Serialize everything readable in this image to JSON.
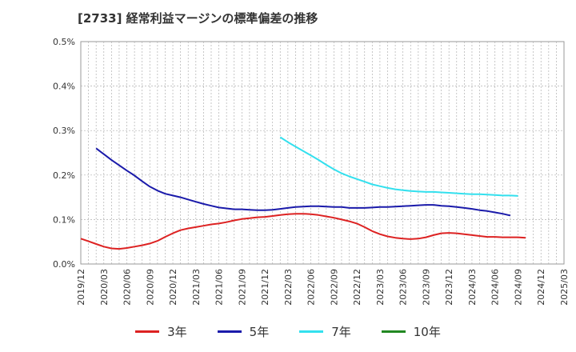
{
  "chart_data": {
    "type": "line",
    "title": "[2733]  経常利益マージンの標準偏差の推移",
    "xlabel": "",
    "ylabel": "",
    "ylim": [
      0,
      0.5
    ],
    "y_ticks": [
      "0.0%",
      "0.1%",
      "0.2%",
      "0.3%",
      "0.4%",
      "0.5%"
    ],
    "x_ticks": [
      "2019/12",
      "2020/03",
      "2020/06",
      "2020/09",
      "2020/12",
      "2021/03",
      "2021/06",
      "2021/09",
      "2021/12",
      "2022/03",
      "2022/06",
      "2022/09",
      "2022/12",
      "2023/03",
      "2023/06",
      "2023/09",
      "2023/12",
      "2024/03",
      "2024/06",
      "2024/09",
      "2024/12",
      "2025/03"
    ],
    "x_start": "2019/12",
    "grid": true,
    "legend": "bottom",
    "series": [
      {
        "name": "3年",
        "color": "#dd2222",
        "start": "2019/12",
        "values": [
          0.057,
          0.051,
          0.045,
          0.039,
          0.035,
          0.034,
          0.036,
          0.039,
          0.042,
          0.046,
          0.052,
          0.061,
          0.069,
          0.076,
          0.08,
          0.083,
          0.086,
          0.089,
          0.091,
          0.094,
          0.098,
          0.101,
          0.103,
          0.105,
          0.106,
          0.108,
          0.11,
          0.112,
          0.113,
          0.113,
          0.112,
          0.11,
          0.107,
          0.104,
          0.1,
          0.096,
          0.091,
          0.083,
          0.074,
          0.067,
          0.062,
          0.059,
          0.057,
          0.056,
          0.057,
          0.06,
          0.065,
          0.069,
          0.07,
          0.069,
          0.067,
          0.065,
          0.063,
          0.061,
          0.061,
          0.06,
          0.06,
          0.06,
          0.059
        ]
      },
      {
        "name": "5年",
        "color": "#1a1aaa",
        "start": "2020/02",
        "values": [
          0.26,
          0.247,
          0.234,
          0.222,
          0.21,
          0.199,
          0.186,
          0.174,
          0.165,
          0.158,
          0.154,
          0.15,
          0.145,
          0.14,
          0.135,
          0.131,
          0.127,
          0.125,
          0.123,
          0.123,
          0.122,
          0.121,
          0.121,
          0.122,
          0.124,
          0.126,
          0.128,
          0.129,
          0.13,
          0.13,
          0.129,
          0.128,
          0.128,
          0.126,
          0.126,
          0.126,
          0.127,
          0.128,
          0.128,
          0.129,
          0.13,
          0.131,
          0.132,
          0.133,
          0.133,
          0.131,
          0.13,
          0.128,
          0.126,
          0.124,
          0.121,
          0.119,
          0.116,
          0.113,
          0.109
        ]
      },
      {
        "name": "7年",
        "color": "#33e0ee",
        "start": "2022/02",
        "values": [
          0.285,
          0.274,
          0.264,
          0.254,
          0.244,
          0.234,
          0.223,
          0.213,
          0.204,
          0.197,
          0.191,
          0.185,
          0.179,
          0.175,
          0.171,
          0.168,
          0.166,
          0.164,
          0.163,
          0.162,
          0.162,
          0.161,
          0.16,
          0.159,
          0.158,
          0.157,
          0.157,
          0.156,
          0.155,
          0.154,
          0.154,
          0.153
        ]
      },
      {
        "name": "10年",
        "color": "#228822",
        "start": "2019/12",
        "values": []
      }
    ]
  }
}
